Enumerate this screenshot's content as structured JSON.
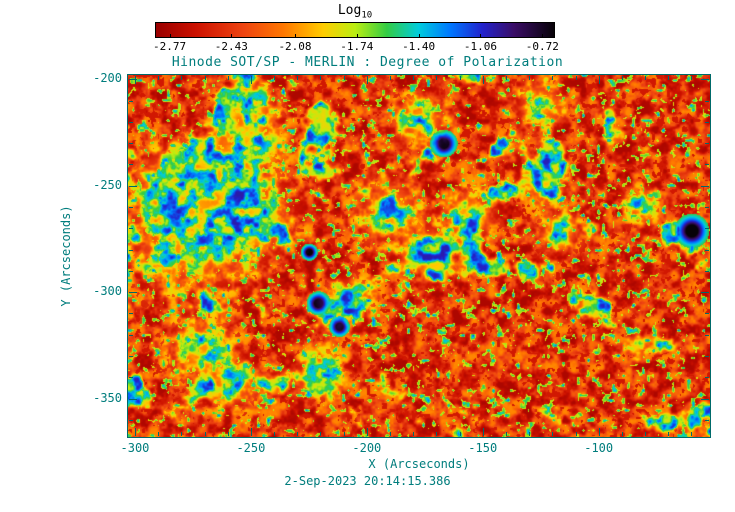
{
  "colors": {
    "axis_accent": "#007d7d",
    "colorbar_text": "#000000",
    "background": "#ffffff"
  },
  "chart_data": {
    "type": "heatmap",
    "title": "Hinode SOT/SP - MERLIN : Degree of Polarization",
    "caption": "2-Sep-2023 20:14:15.386",
    "xlabel": "X (Arcseconds)",
    "ylabel": "Y (Arcseconds)",
    "value_description": "Log10 degree of polarization map; mostly red-orange quiet sun with green/cyan/blue magnetic network patches and dark purple pores",
    "xlim": [
      -303,
      -52
    ],
    "ylim": [
      -368,
      -198
    ],
    "x_ticks": [
      -300,
      -250,
      -200,
      -150,
      -100
    ],
    "y_ticks": [
      -200,
      -250,
      -300,
      -350
    ],
    "grid": false,
    "colorbar": {
      "title": "Log",
      "title_sub": "10",
      "tick_labels": [
        "-2.77",
        "-2.43",
        "-2.08",
        "-1.74",
        "-1.40",
        "-1.06",
        "-0.72"
      ],
      "tick_values": [
        -2.77,
        -2.43,
        -2.08,
        -1.74,
        -1.4,
        -1.06,
        -0.72
      ],
      "range": [
        -2.85,
        -0.65
      ],
      "gradient_stops": [
        {
          "u": 0.0,
          "color": "#990000"
        },
        {
          "u": 0.1,
          "color": "#cc1100"
        },
        {
          "u": 0.22,
          "color": "#ee4411"
        },
        {
          "u": 0.32,
          "color": "#ff7700"
        },
        {
          "u": 0.42,
          "color": "#ffcc00"
        },
        {
          "u": 0.5,
          "color": "#bbee11"
        },
        {
          "u": 0.58,
          "color": "#33cc44"
        },
        {
          "u": 0.66,
          "color": "#00ccdd"
        },
        {
          "u": 0.74,
          "color": "#0077ff"
        },
        {
          "u": 0.82,
          "color": "#2222cc"
        },
        {
          "u": 0.9,
          "color": "#3a0d66"
        },
        {
          "u": 1.0,
          "color": "#070208"
        }
      ]
    },
    "render": {
      "seed": 11,
      "granule_scale": 0.11,
      "network_scale": 0.026,
      "speckle_scale": 0.2,
      "features": [
        {
          "type": "pore",
          "x": -167,
          "y": -230,
          "r": 4
        },
        {
          "type": "pore",
          "x": -60,
          "y": -271,
          "r": 5
        },
        {
          "type": "pore",
          "x": -221,
          "y": -305,
          "r": 3.5
        },
        {
          "type": "pore",
          "x": -212,
          "y": -316,
          "r": 3
        },
        {
          "type": "pore",
          "x": -286,
          "y": -284,
          "r": 2.5
        },
        {
          "type": "pore",
          "x": -225,
          "y": -281,
          "r": 2.5
        },
        {
          "type": "plage",
          "x": -276,
          "y": -271,
          "r": 22
        },
        {
          "type": "plage",
          "x": -252,
          "y": -262,
          "r": 16
        },
        {
          "type": "plage",
          "x": -283,
          "y": -252,
          "r": 14
        },
        {
          "type": "plage",
          "x": -262,
          "y": -240,
          "r": 12
        },
        {
          "type": "plage",
          "x": -250,
          "y": -228,
          "r": 10
        },
        {
          "type": "plage",
          "x": -250,
          "y": -212,
          "r": 9
        },
        {
          "type": "plage",
          "x": -190,
          "y": -262,
          "r": 11
        },
        {
          "type": "plage",
          "x": -173,
          "y": -281,
          "r": 9
        },
        {
          "type": "plage",
          "x": -156,
          "y": -264,
          "r": 9
        },
        {
          "type": "plage",
          "x": -177,
          "y": -219,
          "r": 9
        },
        {
          "type": "plage",
          "x": -125,
          "y": -212,
          "r": 8
        },
        {
          "type": "plage",
          "x": -123,
          "y": -247,
          "r": 8
        },
        {
          "type": "plage",
          "x": -117,
          "y": -271,
          "r": 7
        },
        {
          "type": "plage",
          "x": -82,
          "y": -259,
          "r": 6
        },
        {
          "type": "plage",
          "x": -272,
          "y": -327,
          "r": 11
        },
        {
          "type": "plage",
          "x": -259,
          "y": -342,
          "r": 9
        },
        {
          "type": "plage",
          "x": -220,
          "y": -337,
          "r": 8
        },
        {
          "type": "plage",
          "x": -208,
          "y": -304,
          "r": 8
        }
      ]
    }
  }
}
